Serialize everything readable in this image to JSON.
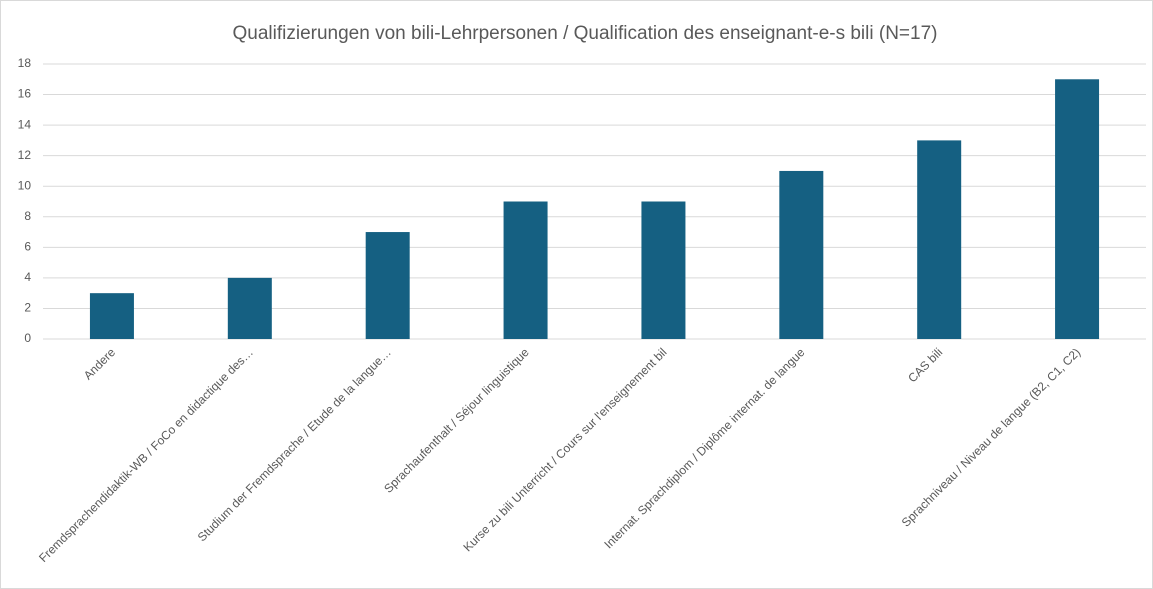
{
  "chart_data": {
    "type": "bar",
    "title": "Qualifizierungen von bili-Lehrpersonen / Qualification des enseignant-e-s bili (N=17)",
    "categories": [
      "Andere",
      "Fremdsprachendidaktik-WB / FoCo en didactique des…",
      "Studium der Fremdsprache / Etude de la langue…",
      "Sprachaufenthalt / Séjour linguistique",
      "Kurse zu bili Unterricht / Cours sur l'enseignement bil",
      "Internat. Sprachdiplom / Diplôme internat. de langue",
      "CAS bili",
      "Sprachniveau / Niveau de langue (B2, C1, C2)"
    ],
    "values": [
      3,
      4,
      7,
      9,
      9,
      11,
      13,
      17
    ],
    "color": "#156082",
    "ylim": [
      0,
      18
    ],
    "yticks": [
      0,
      2,
      4,
      6,
      8,
      10,
      12,
      14,
      16,
      18
    ],
    "grid": true
  }
}
